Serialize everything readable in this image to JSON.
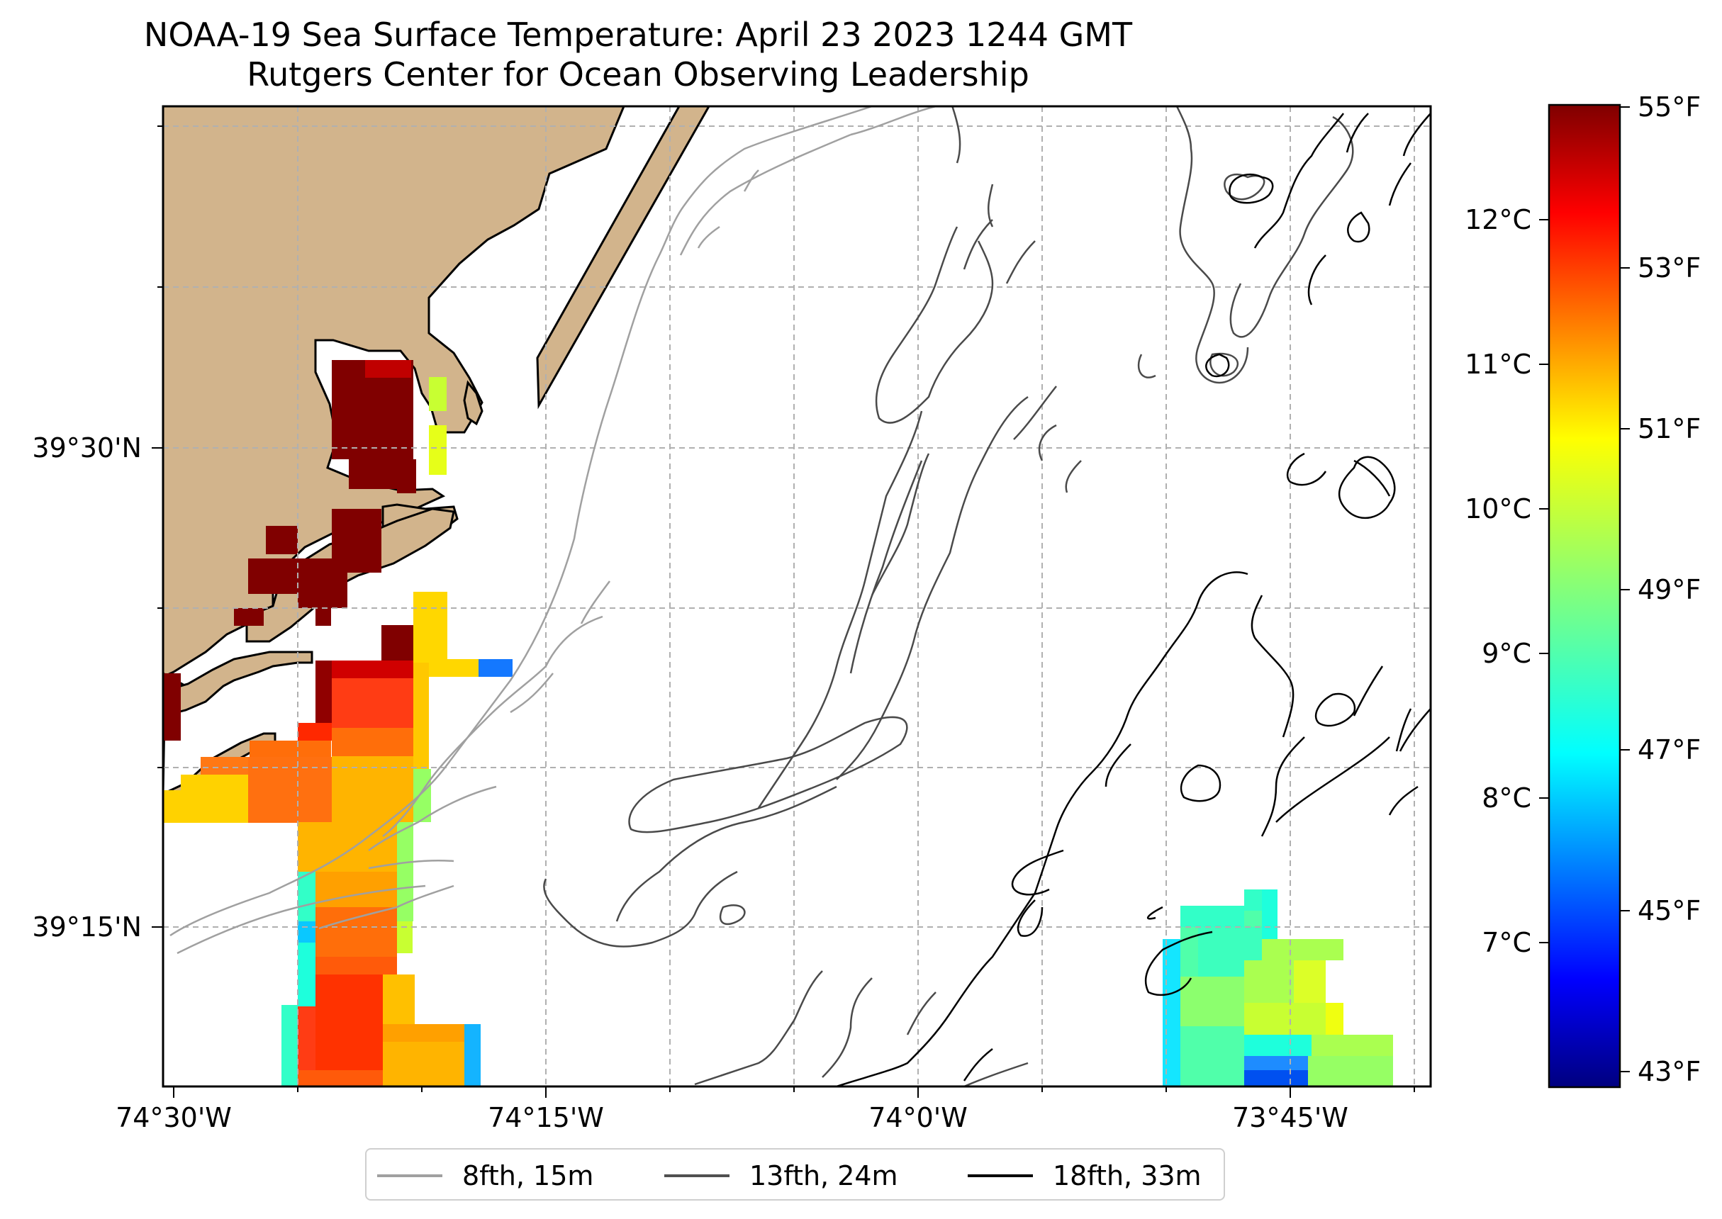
{
  "title": {
    "line1": "NOAA-19 Sea Surface Temperature: April 23 2023 1244 GMT",
    "line2": "Rutgers Center for Ocean Observing Leadership"
  },
  "map": {
    "lon_labels": [
      "74°30'W",
      "74°15'W",
      "74°0'W",
      "73°45'W"
    ],
    "lat_labels": [
      "39°30'N",
      "39°15'N"
    ],
    "land_color": "#d2b48c",
    "grid": "dashed"
  },
  "colorbar": {
    "fahrenheit_labels": [
      "55°F",
      "53°F",
      "51°F",
      "49°F",
      "47°F",
      "45°F",
      "43°F"
    ],
    "celsius_labels": [
      "12°C",
      "11°C",
      "10°C",
      "9°C",
      "8°C",
      "7°C"
    ],
    "colormap": "jet",
    "range_f": [
      42.8,
      55.0
    ]
  },
  "legend": {
    "items": [
      {
        "label": "8fth, 15m",
        "color": "#a0a0a0"
      },
      {
        "label": "13fth, 24m",
        "color": "#505050"
      },
      {
        "label": "18fth, 33m",
        "color": "#000000"
      }
    ]
  }
}
